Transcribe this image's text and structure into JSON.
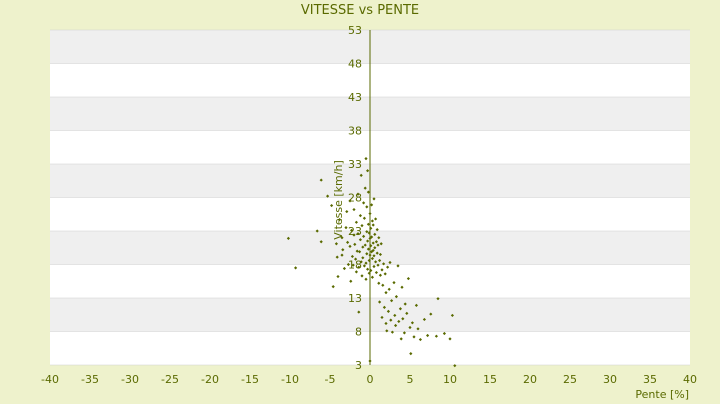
{
  "chart_data": {
    "type": "scatter",
    "title": "VITESSE vs PENTE",
    "xlabel": "Pente [%]",
    "ylabel": "Vitesse [km/h]",
    "xlim": [
      -40,
      40
    ],
    "ylim": [
      3,
      53
    ],
    "xticks": [
      "-40",
      "-35",
      "-30",
      "-25",
      "-20",
      "-15",
      "-10",
      "-5",
      "0",
      "5",
      "10",
      "15",
      "20",
      "25",
      "30",
      "35",
      "40"
    ],
    "yticks": [
      "3",
      "8",
      "13",
      "18",
      "23",
      "28",
      "33",
      "38",
      "43",
      "48",
      "53"
    ],
    "grid": true,
    "colors": {
      "background": "#eef2cc",
      "plot_light": "#ffffff",
      "plot_band": "#efefef",
      "gridline": "#d0d0d0",
      "axis": "#5a6a00",
      "marker": "#5a6a00"
    },
    "points": [
      [
        -10.2,
        21.9
      ],
      [
        -9.3,
        17.5
      ],
      [
        -6.6,
        23.0
      ],
      [
        -6.1,
        30.6
      ],
      [
        -6.1,
        21.4
      ],
      [
        -5.3,
        28.2
      ],
      [
        -4.8,
        26.8
      ],
      [
        -4.6,
        14.7
      ],
      [
        -4.2,
        21.1
      ],
      [
        -4.1,
        19.1
      ],
      [
        -4.0,
        16.2
      ],
      [
        -3.8,
        24.7
      ],
      [
        -3.5,
        22.0
      ],
      [
        -3.5,
        19.4
      ],
      [
        -3.4,
        20.2
      ],
      [
        -3.2,
        17.4
      ],
      [
        -3.0,
        23.5
      ],
      [
        -2.9,
        25.9
      ],
      [
        -2.8,
        21.3
      ],
      [
        -2.7,
        18.0
      ],
      [
        -2.5,
        27.5
      ],
      [
        -2.5,
        20.7
      ],
      [
        -2.4,
        15.5
      ],
      [
        -2.3,
        23.1
      ],
      [
        -2.2,
        19.2
      ],
      [
        -2.1,
        17.9
      ],
      [
        -2.0,
        22.4
      ],
      [
        -2.0,
        26.2
      ],
      [
        -1.9,
        21.0
      ],
      [
        -1.8,
        18.8
      ],
      [
        -1.7,
        16.9
      ],
      [
        -1.7,
        24.3
      ],
      [
        -1.6,
        20.0
      ],
      [
        -1.5,
        28.5
      ],
      [
        -1.5,
        22.6
      ],
      [
        -1.4,
        17.6
      ],
      [
        -1.4,
        10.9
      ],
      [
        -1.3,
        19.9
      ],
      [
        -1.2,
        21.7
      ],
      [
        -1.2,
        25.3
      ],
      [
        -1.1,
        18.4
      ],
      [
        -1.1,
        31.3
      ],
      [
        -1.0,
        23.8
      ],
      [
        -1.0,
        16.3
      ],
      [
        -0.9,
        20.6
      ],
      [
        -0.9,
        19.0
      ],
      [
        -0.8,
        27.2
      ],
      [
        -0.8,
        22.2
      ],
      [
        -0.7,
        17.8
      ],
      [
        -0.7,
        24.9
      ],
      [
        -0.6,
        29.4
      ],
      [
        -0.6,
        20.9
      ],
      [
        -0.5,
        18.2
      ],
      [
        -0.5,
        33.8
      ],
      [
        -0.5,
        15.8
      ],
      [
        -0.4,
        22.9
      ],
      [
        -0.4,
        26.6
      ],
      [
        -0.4,
        19.6
      ],
      [
        -0.3,
        32.0
      ],
      [
        -0.3,
        21.5
      ],
      [
        -0.3,
        17.3
      ],
      [
        -0.2,
        24.0
      ],
      [
        -0.2,
        20.3
      ],
      [
        -0.2,
        28.8
      ],
      [
        -0.1,
        18.6
      ],
      [
        -0.1,
        22.7
      ],
      [
        -0.1,
        16.7
      ],
      [
        0.0,
        25.6
      ],
      [
        0.0,
        19.4
      ],
      [
        0.0,
        21.9
      ],
      [
        0.0,
        3.6
      ],
      [
        0.1,
        20.8
      ],
      [
        0.1,
        23.4
      ],
      [
        0.1,
        17.1
      ],
      [
        0.2,
        19.9
      ],
      [
        0.2,
        26.9
      ],
      [
        0.2,
        22.1
      ],
      [
        0.3,
        18.9
      ],
      [
        0.3,
        24.5
      ],
      [
        0.3,
        16.1
      ],
      [
        0.4,
        21.2
      ],
      [
        0.4,
        20.1
      ],
      [
        0.4,
        23.9
      ],
      [
        0.5,
        19.3
      ],
      [
        0.5,
        27.8
      ],
      [
        0.5,
        17.7
      ],
      [
        0.6,
        22.5
      ],
      [
        0.6,
        20.5
      ],
      [
        0.7,
        18.4
      ],
      [
        0.7,
        24.8
      ],
      [
        0.8,
        21.4
      ],
      [
        0.8,
        16.8
      ],
      [
        0.9,
        19.7
      ],
      [
        0.9,
        23.2
      ],
      [
        1.0,
        17.9
      ],
      [
        1.0,
        20.9
      ],
      [
        1.1,
        15.2
      ],
      [
        1.1,
        22.0
      ],
      [
        1.2,
        18.6
      ],
      [
        1.2,
        12.4
      ],
      [
        1.3,
        19.5
      ],
      [
        1.3,
        16.4
      ],
      [
        1.4,
        21.1
      ],
      [
        1.5,
        17.2
      ],
      [
        1.5,
        10.1
      ],
      [
        1.6,
        14.9
      ],
      [
        1.7,
        18.1
      ],
      [
        1.8,
        11.6
      ],
      [
        1.9,
        16.6
      ],
      [
        2.0,
        9.2
      ],
      [
        2.0,
        13.8
      ],
      [
        2.1,
        8.1
      ],
      [
        2.2,
        17.6
      ],
      [
        2.3,
        11.0
      ],
      [
        2.4,
        14.3
      ],
      [
        2.5,
        18.3
      ],
      [
        2.6,
        9.7
      ],
      [
        2.7,
        12.6
      ],
      [
        2.8,
        7.9
      ],
      [
        3.0,
        15.3
      ],
      [
        3.1,
        10.4
      ],
      [
        3.2,
        8.9
      ],
      [
        3.3,
        13.2
      ],
      [
        3.5,
        17.8
      ],
      [
        3.6,
        9.5
      ],
      [
        3.8,
        11.4
      ],
      [
        3.9,
        6.9
      ],
      [
        4.0,
        14.6
      ],
      [
        4.1,
        9.9
      ],
      [
        4.3,
        7.8
      ],
      [
        4.4,
        12.1
      ],
      [
        4.6,
        10.7
      ],
      [
        4.8,
        15.9
      ],
      [
        5.0,
        8.6
      ],
      [
        5.1,
        4.7
      ],
      [
        5.3,
        9.3
      ],
      [
        5.5,
        7.2
      ],
      [
        5.8,
        11.9
      ],
      [
        6.0,
        8.4
      ],
      [
        6.3,
        6.8
      ],
      [
        6.8,
        9.8
      ],
      [
        7.2,
        7.4
      ],
      [
        7.6,
        10.6
      ],
      [
        8.3,
        7.3
      ],
      [
        8.5,
        12.9
      ],
      [
        9.3,
        7.7
      ],
      [
        10.0,
        6.9
      ],
      [
        10.3,
        10.4
      ],
      [
        10.6,
        2.9
      ]
    ]
  }
}
